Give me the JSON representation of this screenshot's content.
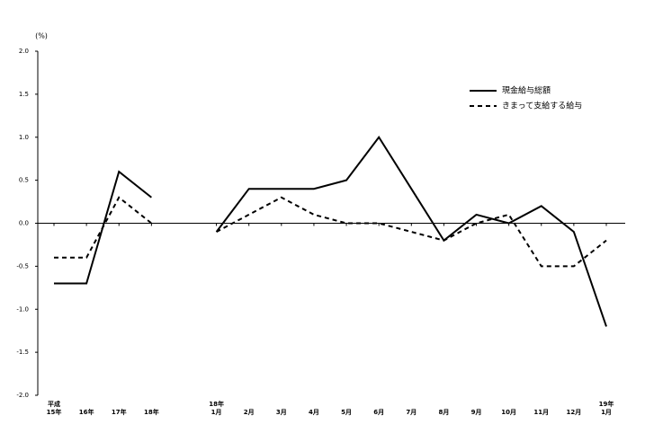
{
  "chart_data": {
    "type": "line",
    "y_unit": "(%)",
    "categories": [
      "平成\n15年",
      "16年",
      "17年",
      "18年",
      null,
      "18年\n1月",
      "2月",
      "3月",
      "4月",
      "5月",
      "6月",
      "7月",
      "8月",
      "9月",
      "10月",
      "11月",
      "12月",
      "19年\n1月"
    ],
    "series": [
      {
        "name": "現金給与総額",
        "color": "#000000",
        "dash": "solid",
        "values": [
          -0.7,
          -0.7,
          0.6,
          0.3,
          null,
          -0.1,
          0.4,
          0.4,
          0.4,
          0.5,
          1.0,
          0.4,
          -0.2,
          0.1,
          0.0,
          0.2,
          -0.1,
          -1.2
        ]
      },
      {
        "name": "きまって支給する給与",
        "color": "#000000",
        "dash": "dashed",
        "values": [
          -0.4,
          -0.4,
          0.3,
          0.0,
          null,
          -0.1,
          0.1,
          0.3,
          0.1,
          0.0,
          0.0,
          -0.1,
          -0.2,
          0.0,
          0.1,
          -0.5,
          -0.5,
          -0.2
        ]
      }
    ],
    "ylim": [
      -2.0,
      2.0
    ],
    "yticks": [
      {
        "value": 2.0,
        "label": "2.0"
      },
      {
        "value": 1.5,
        "label": "1.5"
      },
      {
        "value": 1.0,
        "label": "1.0"
      },
      {
        "value": 0.5,
        "label": "0.5"
      },
      {
        "value": 0.0,
        "label": "0.0"
      },
      {
        "value": -0.5,
        "label": "-0.5"
      },
      {
        "value": -1.0,
        "label": "-1.0"
      },
      {
        "value": -1.5,
        "label": "-1.5"
      },
      {
        "value": -2.0,
        "label": "-2.0"
      }
    ],
    "legend": "upper right",
    "grid": false
  }
}
